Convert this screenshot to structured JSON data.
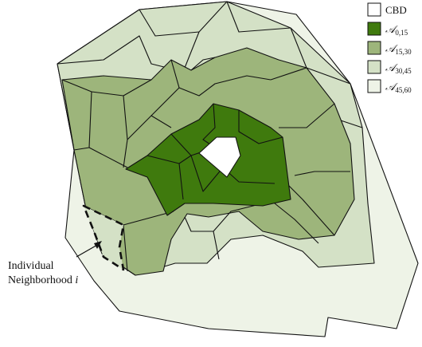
{
  "legend": {
    "items": [
      {
        "key": "cbd",
        "label": "CBD",
        "sub": "",
        "color": "#ffffff"
      },
      {
        "key": "a0",
        "label": "𝒜",
        "sub": "0,15",
        "color": "#3f7a0d"
      },
      {
        "key": "a15",
        "label": "𝒜",
        "sub": "15,30",
        "color": "#9db57b"
      },
      {
        "key": "a30",
        "label": "𝒜",
        "sub": "30,45",
        "color": "#d4e1c6"
      },
      {
        "key": "a45",
        "label": "𝒜",
        "sub": "45,60",
        "color": "#eef3e7"
      }
    ]
  },
  "callout": {
    "line1": "Individual",
    "line2": "Neighborhood",
    "line2_italic": "i"
  }
}
